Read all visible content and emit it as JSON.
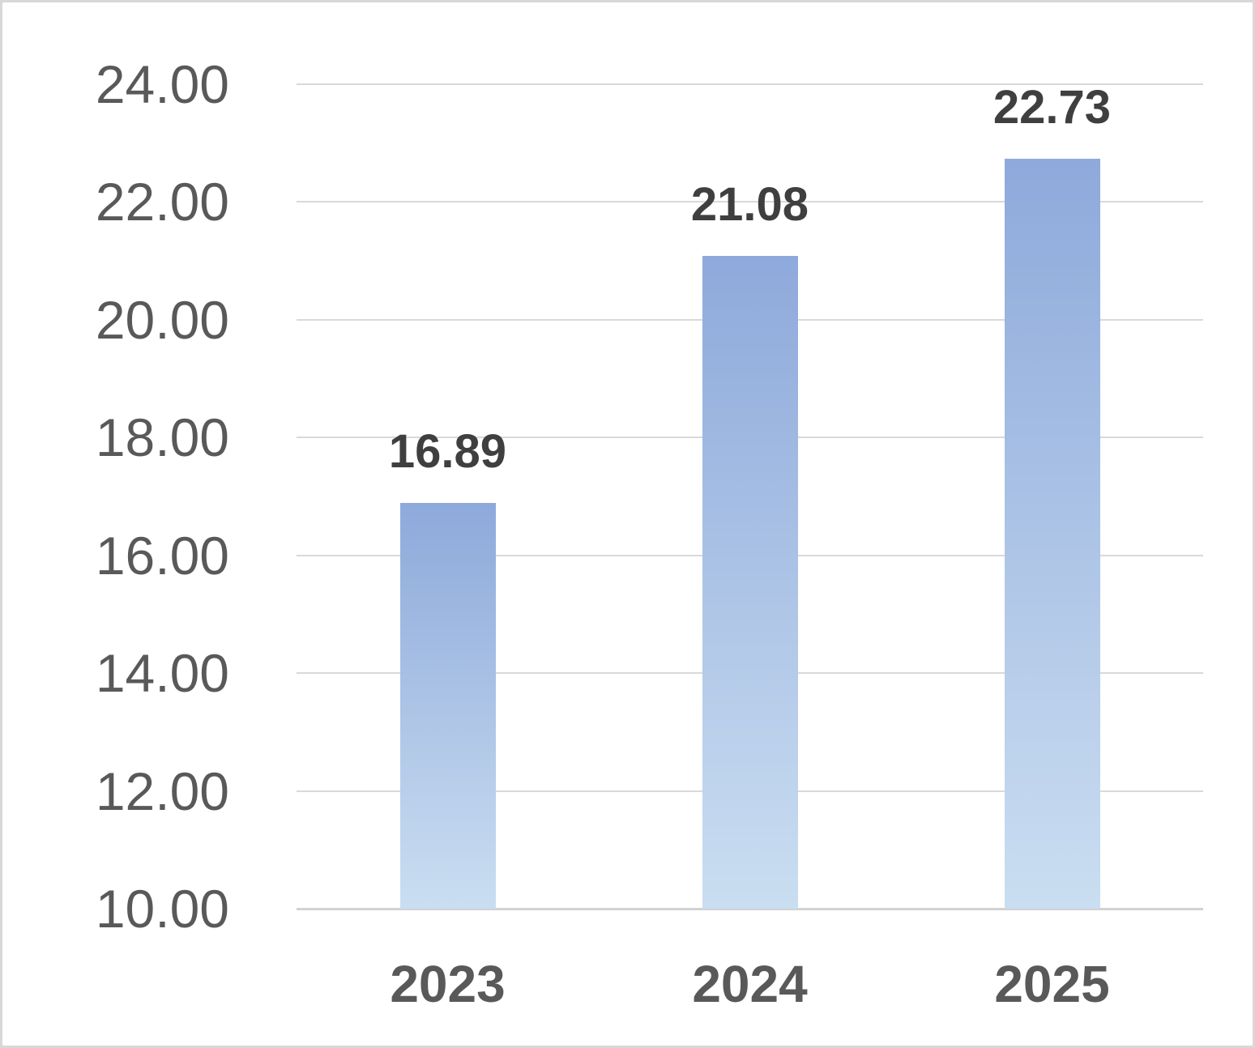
{
  "chart_data": {
    "type": "bar",
    "categories": [
      "2023",
      "2024",
      "2025"
    ],
    "values": [
      16.89,
      21.08,
      22.73
    ],
    "data_labels": [
      "16.89",
      "21.08",
      "22.73"
    ],
    "title": "",
    "xlabel": "",
    "ylabel": "",
    "ylim": [
      10,
      24
    ],
    "ytick_step": 2,
    "ytick_labels": [
      "10.00",
      "12.00",
      "14.00",
      "16.00",
      "18.00",
      "20.00",
      "22.00",
      "24.00"
    ],
    "grid": true,
    "legend": false,
    "colors": {
      "bar_gradient_top": "#8EA9DB",
      "bar_gradient_bottom": "#CADEF1",
      "gridline": "#d9d9d9",
      "axis_line": "#d2d2d2",
      "ytick_color": "#595959",
      "xtick_color": "#595959",
      "data_label_color": "#3f3f3f",
      "background": "#ffffff",
      "border": "#d8d8d8"
    }
  }
}
